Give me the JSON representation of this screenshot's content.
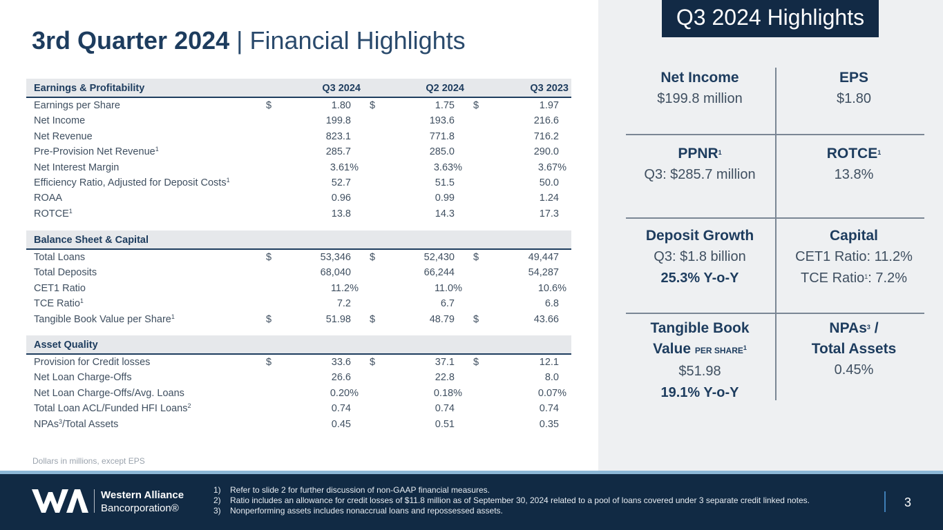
{
  "title": {
    "bold": "3rd Quarter 2024",
    "separator": " | ",
    "rest": "Financial Highlights"
  },
  "columns": [
    "Q3 2024",
    "Q2 2024",
    "Q3 2023"
  ],
  "sections": [
    {
      "header": "Earnings & Profitability",
      "rows": [
        {
          "label": "Earnings per Share",
          "sup": "",
          "dollar": true,
          "v1": "1.80",
          "v2": "1.75",
          "v3": "1.97"
        },
        {
          "label": "Net Income",
          "sup": "",
          "dollar": false,
          "v1": "199.8",
          "v2": "193.6",
          "v3": "216.6"
        },
        {
          "label": "Net Revenue",
          "sup": "",
          "dollar": false,
          "v1": "823.1",
          "v2": "771.8",
          "v3": "716.2"
        },
        {
          "label": "Pre-Provision Net Revenue",
          "sup": "1",
          "dollar": false,
          "v1": "285.7",
          "v2": "285.0",
          "v3": "290.0"
        },
        {
          "label": "Net Interest Margin",
          "sup": "",
          "dollar": false,
          "v1": "3.61",
          "v2": "3.63",
          "v3": "3.67",
          "pct": "%"
        },
        {
          "label": "Efficiency Ratio, Adjusted for Deposit Costs",
          "sup": "1",
          "dollar": false,
          "v1": "52.7",
          "v2": "51.5",
          "v3": "50.0"
        },
        {
          "label": "ROAA",
          "sup": "",
          "dollar": false,
          "v1": "0.96",
          "v2": "0.99",
          "v3": "1.24"
        },
        {
          "label": "ROTCE",
          "sup": "1",
          "dollar": false,
          "v1": "13.8",
          "v2": "14.3",
          "v3": "17.3"
        }
      ]
    },
    {
      "header": "Balance Sheet & Capital",
      "rows": [
        {
          "label": "Total Loans",
          "sup": "",
          "dollar": true,
          "v1": "53,346",
          "v2": "52,430",
          "v3": "49,447"
        },
        {
          "label": "Total Deposits",
          "sup": "",
          "dollar": false,
          "v1": "68,040",
          "v2": "66,244",
          "v3": "54,287"
        },
        {
          "label": "CET1 Ratio",
          "sup": "",
          "dollar": false,
          "v1": "11.2",
          "v2": "11.0",
          "v3": "10.6",
          "pct": "%"
        },
        {
          "label": "TCE Ratio",
          "sup": "1",
          "dollar": false,
          "v1": "7.2",
          "v2": "6.7",
          "v3": "6.8"
        },
        {
          "label": "Tangible Book Value per Share",
          "sup": "1",
          "dollar": true,
          "v1": "51.98",
          "v2": "48.79",
          "v3": "43.66"
        }
      ]
    },
    {
      "header": "Asset Quality",
      "rows": [
        {
          "label": "Provision for Credit losses",
          "sup": "",
          "dollar": true,
          "v1": "33.6",
          "v2": "37.1",
          "v3": "12.1"
        },
        {
          "label": "Net Loan Charge-Offs",
          "sup": "",
          "dollar": false,
          "v1": "26.6",
          "v2": "22.8",
          "v3": "8.0"
        },
        {
          "label": "Net Loan Charge-Offs/Avg. Loans",
          "sup": "",
          "dollar": false,
          "v1": "0.20",
          "v2": "0.18",
          "v3": "0.07",
          "pct": "%"
        },
        {
          "label": "Total Loan ACL/Funded HFI Loans",
          "sup": "2",
          "dollar": false,
          "v1": "0.74",
          "v2": "0.74",
          "v3": "0.74"
        },
        {
          "label": "NPAs",
          "sup": "3",
          "label_suffix": "/Total Assets",
          "dollar": false,
          "v1": "0.45",
          "v2": "0.51",
          "v3": "0.35"
        }
      ]
    }
  ],
  "dollar_sign": "$",
  "note": "Dollars in millions, except EPS",
  "highlights": {
    "badge": "Q3 2024 Highlights",
    "net_income": {
      "head": "Net Income",
      "value": "$199.8 million"
    },
    "eps": {
      "head": "EPS",
      "value": "$1.80"
    },
    "ppnr": {
      "head": "PPNR",
      "sup": "1",
      "value": "Q3: $285.7 million"
    },
    "rotce": {
      "head": "ROTCE",
      "sup": "1",
      "value": "13.8%"
    },
    "deposit_growth": {
      "head": "Deposit Growth",
      "value": "Q3: $1.8 billion",
      "bold": "25.3%  Y-o-Y"
    },
    "capital": {
      "head": "Capital",
      "value1": "CET1 Ratio: 11.2%",
      "value2_prefix": "TCE Ratio",
      "value2_sup": "1",
      "value2_suffix": ": 7.2%"
    },
    "tbv": {
      "head1": "Tangible Book",
      "head2": "Value",
      "head2_small": "PER SHARE",
      "sup": "1",
      "value": "$51.98",
      "bold": "19.1%  Y-o-Y"
    },
    "npas": {
      "head1_prefix": "NPAs",
      "head1_sup": "3",
      "head1_suffix": " /",
      "head2": "Total Assets",
      "value": "0.45%"
    }
  },
  "footer": {
    "brand_line1": "Western Alliance",
    "brand_line2": "Bancorporation®",
    "notes": [
      {
        "n": "1)",
        "text": "Refer to slide 2 for further discussion of non-GAAP financial measures."
      },
      {
        "n": "2)",
        "text": "Ratio includes an allowance for credit losses of $11.8 million as of September 30, 2024 related to a pool of loans covered under 3 separate credit linked notes."
      },
      {
        "n": "3)",
        "text": "Nonperforming assets includes nonaccrual loans and repossessed assets."
      }
    ],
    "page": "3"
  },
  "colors": {
    "navy": "#112a44",
    "title": "#1d3c5e",
    "stripe": "#8db7d6",
    "panel": "#eef0f2"
  }
}
